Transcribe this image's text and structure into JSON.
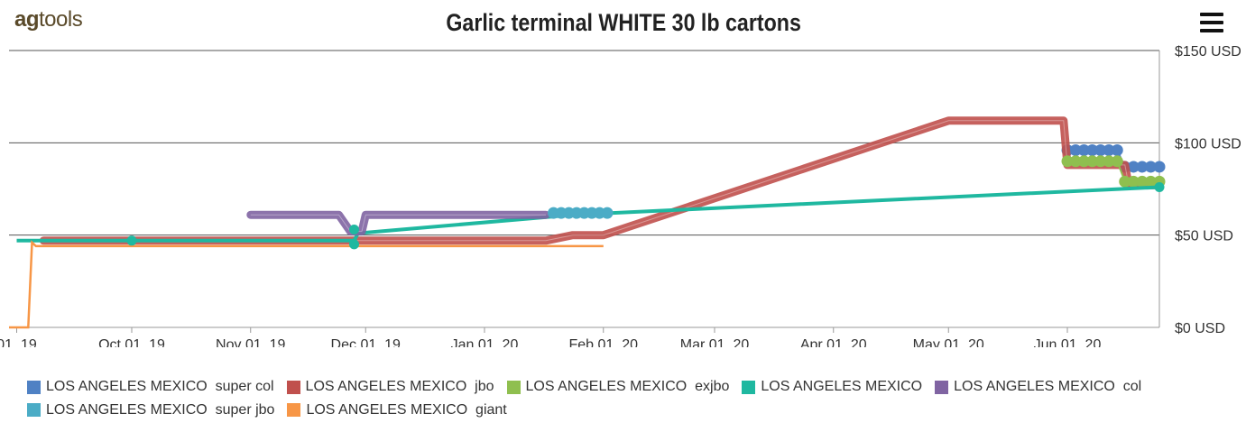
{
  "header": {
    "logo_ag": "ag",
    "logo_tools": "tools",
    "title": "Garlic terminal WHITE 30 lb cartons",
    "menu_icon": "hamburger-menu-icon"
  },
  "chart_data": {
    "type": "line",
    "title": "Garlic terminal WHITE 30 lb cartons",
    "x_ticks": [
      "01, 19",
      "Oct 01, 19",
      "Nov 01, 19",
      "Dec 01, 19",
      "Jan 01, 20",
      "Feb 01, 20",
      "Mar 01, 20",
      "Apr 01, 20",
      "May 01, 20",
      "Jun 01, 20"
    ],
    "x_tick_dates": [
      "2019-09-01",
      "2019-10-01",
      "2019-11-01",
      "2019-12-01",
      "2020-01-01",
      "2020-02-01",
      "2020-03-01",
      "2020-04-01",
      "2020-05-01",
      "2020-06-01"
    ],
    "y_ticks": [
      "$0 USD",
      "$50 USD",
      "$100 USD",
      "$150 USD"
    ],
    "ylim": [
      0,
      150
    ],
    "xlim": [
      "2019-08-30",
      "2020-06-25"
    ],
    "grid": true,
    "legend_position": "bottom",
    "series": [
      {
        "name": "LOS ANGELES MEXICO  super col",
        "color": "#4f81c4",
        "style": "dotted",
        "points": [
          [
            "2020-06-01",
            96
          ],
          [
            "2020-06-14",
            96
          ],
          [
            "2020-06-16",
            87
          ],
          [
            "2020-06-25",
            87
          ]
        ]
      },
      {
        "name": "LOS ANGELES MEXICO  jbo",
        "color": "#c0504d",
        "style": "band",
        "points": [
          [
            "2019-09-08",
            47
          ],
          [
            "2020-01-17",
            47
          ],
          [
            "2020-01-24",
            50
          ],
          [
            "2020-02-01",
            50
          ],
          [
            "2020-05-01",
            112
          ],
          [
            "2020-05-31",
            112
          ],
          [
            "2020-06-01",
            88
          ],
          [
            "2020-06-16",
            88
          ],
          [
            "2020-06-17",
            77
          ],
          [
            "2020-06-25",
            77
          ]
        ]
      },
      {
        "name": "LOS ANGELES MEXICO  exjbo",
        "color": "#8fbf4f",
        "style": "dotted",
        "points": [
          [
            "2020-06-01",
            90
          ],
          [
            "2020-06-14",
            90
          ],
          [
            "2020-06-16",
            79
          ],
          [
            "2020-06-25",
            79
          ]
        ]
      },
      {
        "name": "LOS ANGELES MEXICO",
        "color": "#1fb8a0",
        "style": "line",
        "points": [
          [
            "2019-09-01",
            47
          ],
          [
            "2019-10-01",
            47
          ],
          [
            "2019-11-28",
            47
          ],
          [
            "2019-11-29",
            51
          ],
          [
            "2020-01-24",
            61
          ],
          [
            "2020-06-25",
            76
          ]
        ]
      },
      {
        "name": "LOS ANGELES MEXICO  col",
        "color": "#8064a2",
        "style": "band",
        "points": [
          [
            "2019-11-01",
            61
          ],
          [
            "2019-11-24",
            61
          ],
          [
            "2019-11-27",
            52
          ],
          [
            "2019-11-30",
            52
          ],
          [
            "2019-12-01",
            61
          ],
          [
            "2020-01-17",
            61
          ]
        ]
      },
      {
        "name": "LOS ANGELES MEXICO  super jbo",
        "color": "#4bacc6",
        "style": "dotted",
        "points": [
          [
            "2020-01-19",
            62
          ],
          [
            "2020-02-02",
            62
          ]
        ]
      },
      {
        "name": "LOS ANGELES MEXICO  giant",
        "color": "#f79646",
        "style": "line",
        "points": [
          [
            "2019-08-30",
            0
          ],
          [
            "2019-09-04",
            0
          ],
          [
            "2019-09-05",
            46
          ],
          [
            "2019-09-06",
            44
          ],
          [
            "2020-02-01",
            44
          ]
        ]
      }
    ]
  }
}
